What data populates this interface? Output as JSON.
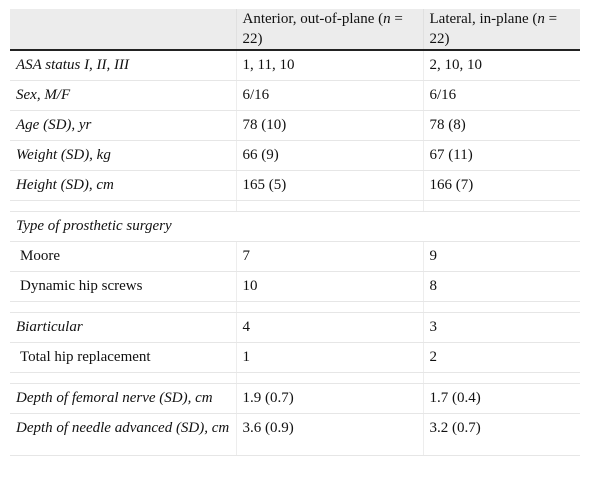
{
  "header": {
    "col1": "",
    "col2_text": "Anterior, out-of-plane (",
    "col2_n": "n",
    "col2_rest": " = 22)",
    "col3_text": "Lateral, in-plane (",
    "col3_n": "n",
    "col3_rest": " = 22)"
  },
  "rows": [
    {
      "label": "ASA status I, II, III",
      "a": "1, 11, 10",
      "b": "2, 10, 10"
    },
    {
      "label": "Sex, M/F",
      "a": "6/16",
      "b": "6/16"
    },
    {
      "label": "Age (SD), yr",
      "a": "78 (10)",
      "b": "78 (8)"
    },
    {
      "label": "Weight (SD), kg",
      "a": "66 (9)",
      "b": "67 (11)"
    },
    {
      "label": "Height (SD), cm",
      "a": "165 (5)",
      "b": "166 (7)"
    },
    {
      "label": "Type of prosthetic surgery",
      "a": "",
      "b": ""
    },
    {
      "label": "Moore",
      "a": "7",
      "b": "9"
    },
    {
      "label": "Dynamic hip screws",
      "a": "10",
      "b": "8"
    },
    {
      "label": "Biarticular",
      "a": "4",
      "b": "3"
    },
    {
      "label": "Total hip replacement",
      "a": "1",
      "b": "2"
    },
    {
      "label": "Depth of femoral nerve (SD), cm",
      "a": "1.9 (0.7)",
      "b": "1.7 (0.4)"
    },
    {
      "label": "Depth of needle advanced (SD), cm",
      "a": "3.6 (0.9)",
      "b": "3.2 (0.7)"
    }
  ]
}
